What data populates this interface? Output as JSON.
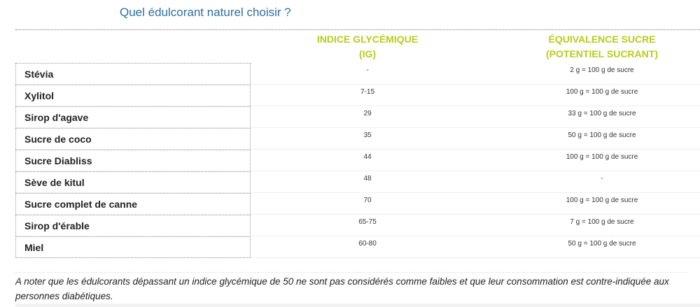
{
  "header": {
    "title": "Quel édulcorant naturel choisir ?"
  },
  "table": {
    "headers": [
      [
        "INDICE GLYCÉMIQUE",
        "(IG)"
      ],
      [
        "ÉQUIVALENCE SUCRE",
        "(POTENTIEL SUCRANT)"
      ]
    ],
    "rows": [
      [
        "Stévia",
        "-",
        "2 g = 100 g de sucre"
      ],
      [
        "Xylitol",
        "7-15",
        "100 g = 100 g de sucre"
      ],
      [
        "Sirop d'agave",
        "29",
        "33 g = 100 g de sucre"
      ],
      [
        "Sucre de coco",
        "35",
        "50 g = 100 g de sucre"
      ],
      [
        "Sucre Diabliss",
        "44",
        "100 g = 100 g de sucre"
      ],
      [
        "Sève de kitul",
        "48",
        "-"
      ],
      [
        "Sucre complet de canne",
        "70",
        "100 g = 100 g de sucre"
      ],
      [
        "Sirop d'érable",
        "65-75",
        "7 g = 100 g de sucre"
      ],
      [
        "Miel",
        "60-80",
        "50 g = 100 g de sucre"
      ]
    ]
  },
  "note": "A noter que les édulcorants dépassant un indice glycémique de 50 ne sont pas considérés comme faibles et que leur consommation est contre-indiquée aux personnes diabétiques."
}
